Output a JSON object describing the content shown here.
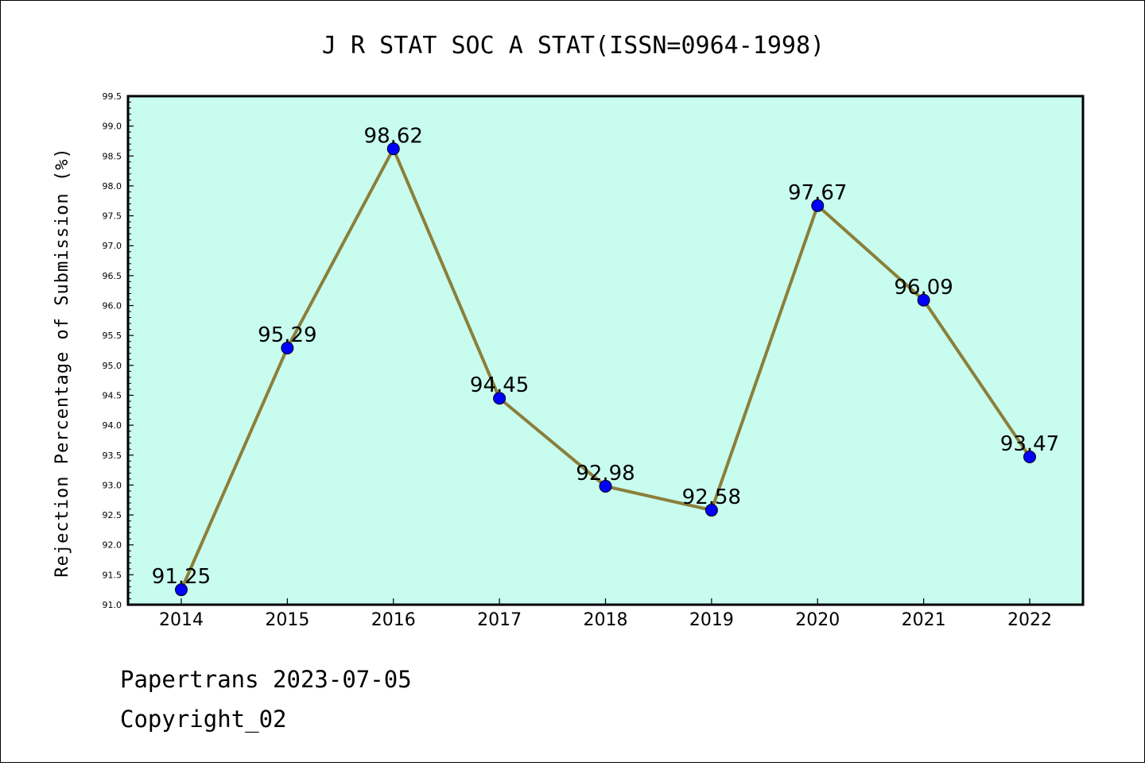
{
  "chart_data": {
    "type": "line",
    "title": "J R STAT SOC A STAT(ISSN=0964-1998)",
    "xlabel": "",
    "ylabel": "Rejection Percentage of Submission (%)",
    "categories": [
      "2014",
      "2015",
      "2016",
      "2017",
      "2018",
      "2019",
      "2020",
      "2021",
      "2022"
    ],
    "series": [
      {
        "values": [
          91.25,
          95.29,
          98.62,
          94.45,
          92.98,
          92.58,
          97.67,
          96.09,
          93.47
        ]
      }
    ],
    "data_labels": [
      "91.25",
      "95.29",
      "98.62",
      "94.45",
      "92.98",
      "92.58",
      "97.67",
      "96.09",
      "93.47"
    ],
    "ylim": [
      91.0,
      99.5
    ],
    "yticks": [
      "91.0",
      "91.5",
      "92.0",
      "92.5",
      "93.0",
      "93.5",
      "94.0",
      "94.5",
      "95.0",
      "95.5",
      "96.0",
      "96.5",
      "97.0",
      "97.5",
      "98.0",
      "98.5",
      "99.0",
      "99.5"
    ],
    "grid": false,
    "colors": {
      "plot_background": "#c8fcee",
      "line": "#8b7f3a",
      "marker": "#0000ff"
    }
  },
  "footer": {
    "line1": "Papertrans 2023-07-05",
    "line2": "Copyright_02"
  }
}
